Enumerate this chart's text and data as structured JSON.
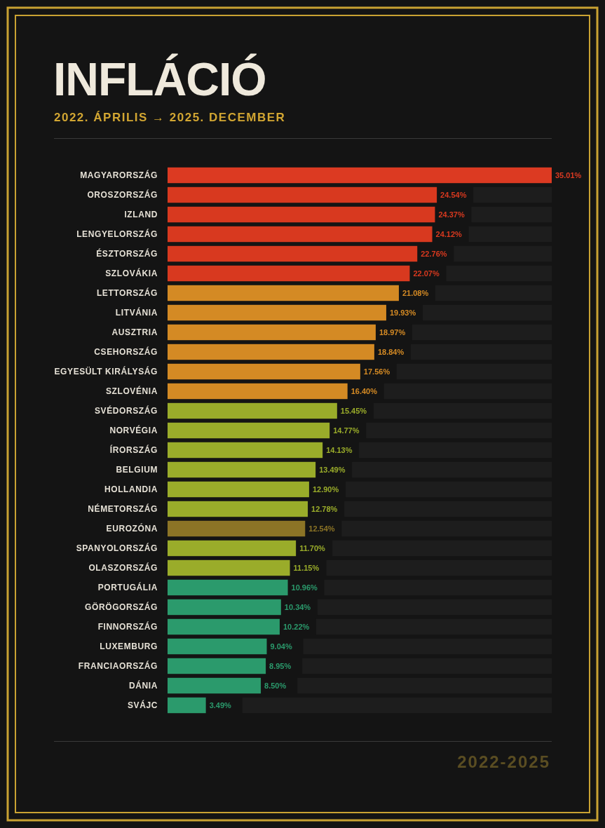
{
  "chart_data": {
    "type": "bar",
    "orientation": "horizontal",
    "title": "INFLÁCIÓ",
    "subtitle": "2022. ÁPRILIS → 2025. DECEMBER",
    "categories": [
      "MAGYARORSZÁG",
      "OROSZORSZÁG",
      "IZLAND",
      "LENGYELORSZÁG",
      "ÉSZTORSZÁG",
      "SZLOVÁKIA",
      "LETTORSZÁG",
      "LITVÁNIA",
      "AUSZTRIA",
      "CSEHORSZÁG",
      "EGYESÜLT KIRÁLYSÁG",
      "SZLOVÉNIA",
      "SVÉDORSZÁG",
      "NORVÉGIA",
      "ÍRORSZÁG",
      "BELGIUM",
      "HOLLANDIA",
      "NÉMETORSZÁG",
      "EUROZÓNA",
      "SPANYOLORSZÁG",
      "OLASZORSZÁG",
      "PORTUGÁLIA",
      "GÖRÖGORSZÁG",
      "FINNORSZÁG",
      "LUXEMBURG",
      "FRANCIAORSZÁG",
      "DÁNIA",
      "SVÁJC"
    ],
    "values": [
      35.01,
      24.54,
      24.37,
      24.12,
      22.76,
      22.07,
      21.08,
      19.93,
      18.97,
      18.84,
      17.56,
      16.4,
      15.45,
      14.77,
      14.13,
      13.49,
      12.9,
      12.78,
      12.54,
      11.7,
      11.15,
      10.96,
      10.34,
      10.22,
      9.04,
      8.95,
      8.5,
      3.49
    ],
    "value_labels": [
      "35.01%",
      "24.54%",
      "24.37%",
      "24.12%",
      "22.76%",
      "22.07%",
      "21.08%",
      "19.93%",
      "18.97%",
      "18.84%",
      "17.56%",
      "16.40%",
      "15.45%",
      "14.77%",
      "14.13%",
      "13.49%",
      "12.90%",
      "12.78%",
      "12.54%",
      "11.70%",
      "11.15%",
      "10.96%",
      "10.34%",
      "10.22%",
      "9.04%",
      "8.95%",
      "8.50%",
      "3.49%"
    ],
    "colors": [
      "#dc3a22",
      "#d8391f",
      "#d8391f",
      "#d8391f",
      "#d8391f",
      "#d8391f",
      "#d48a24",
      "#d48a24",
      "#d48a24",
      "#d48a24",
      "#d48a24",
      "#d48a24",
      "#9aac2a",
      "#9aac2a",
      "#9aac2a",
      "#9aac2a",
      "#9aac2a",
      "#9aac2a",
      "#8c7426",
      "#9aac2a",
      "#9aac2a",
      "#2b9a6c",
      "#2b9a6c",
      "#2b9a6c",
      "#2b9a6c",
      "#2b9a6c",
      "#2b9a6c",
      "#2b9a6c"
    ],
    "xlim": [
      0,
      35.01
    ],
    "tick_labels": "y",
    "annotations": [
      "2022-2025"
    ]
  }
}
